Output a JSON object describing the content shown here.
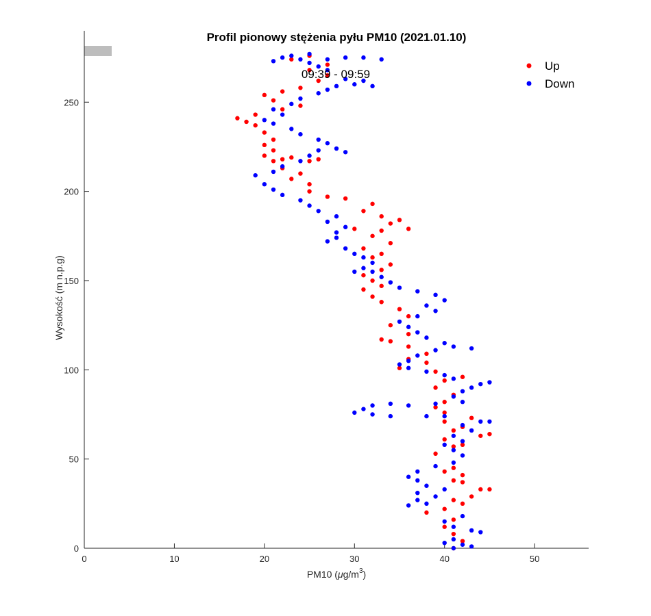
{
  "chart_data": {
    "type": "scatter",
    "title": "Profil pionowy stężenia pyłu PM10 (2021.01.10)",
    "xlabel": "PM10 (μg/m³)",
    "xlabel_main": "PM10 (",
    "xlabel_mu": "μ",
    "xlabel_unit": "g/m",
    "xlabel_exp": "3",
    "xlabel_close": ")",
    "ylabel": "Wysokość (m n.p.g)",
    "xlim": [
      0,
      56
    ],
    "ylim": [
      0,
      290
    ],
    "xticks": [
      0,
      10,
      20,
      30,
      40,
      50
    ],
    "yticks": [
      0,
      50,
      100,
      150,
      200,
      250
    ],
    "annotation": "09:39 - 09:59",
    "legend_position": "top-right",
    "series": [
      {
        "name": "Up",
        "color": "#ff0000",
        "points": [
          [
            41,
            0
          ],
          [
            42,
            4
          ],
          [
            41,
            8
          ],
          [
            40,
            12
          ],
          [
            41,
            16
          ],
          [
            38,
            20
          ],
          [
            40,
            22
          ],
          [
            42,
            25
          ],
          [
            41,
            27
          ],
          [
            43,
            29
          ],
          [
            44,
            33
          ],
          [
            45,
            33
          ],
          [
            42,
            37
          ],
          [
            41,
            38
          ],
          [
            42,
            41
          ],
          [
            40,
            43
          ],
          [
            41,
            45
          ],
          [
            39,
            53
          ],
          [
            41,
            57
          ],
          [
            42,
            58
          ],
          [
            40,
            61
          ],
          [
            44,
            63
          ],
          [
            45,
            64
          ],
          [
            41,
            66
          ],
          [
            42,
            68
          ],
          [
            40,
            71
          ],
          [
            43,
            73
          ],
          [
            40,
            76
          ],
          [
            39,
            79
          ],
          [
            40,
            82
          ],
          [
            41,
            86
          ],
          [
            39,
            90
          ],
          [
            40,
            94
          ],
          [
            42,
            96
          ],
          [
            39,
            99
          ],
          [
            38,
            104
          ],
          [
            35,
            101
          ],
          [
            36,
            106
          ],
          [
            38,
            109
          ],
          [
            36,
            113
          ],
          [
            34,
            116
          ],
          [
            33,
            117
          ],
          [
            36,
            120
          ],
          [
            34,
            125
          ],
          [
            36,
            130
          ],
          [
            35,
            134
          ],
          [
            33,
            138
          ],
          [
            32,
            141
          ],
          [
            31,
            145
          ],
          [
            33,
            147
          ],
          [
            32,
            150
          ],
          [
            31,
            153
          ],
          [
            33,
            156
          ],
          [
            34,
            159
          ],
          [
            32,
            163
          ],
          [
            33,
            165
          ],
          [
            31,
            168
          ],
          [
            34,
            171
          ],
          [
            32,
            175
          ],
          [
            33,
            178
          ],
          [
            30,
            179
          ],
          [
            36,
            179
          ],
          [
            34,
            182
          ],
          [
            35,
            184
          ],
          [
            33,
            186
          ],
          [
            31,
            189
          ],
          [
            32,
            193
          ],
          [
            29,
            196
          ],
          [
            27,
            197
          ],
          [
            25,
            200
          ],
          [
            25,
            204
          ],
          [
            23,
            207
          ],
          [
            24,
            210
          ],
          [
            22,
            213
          ],
          [
            21,
            217
          ],
          [
            22,
            218
          ],
          [
            23,
            219
          ],
          [
            25,
            217
          ],
          [
            26,
            218
          ],
          [
            20,
            220
          ],
          [
            21,
            223
          ],
          [
            20,
            226
          ],
          [
            21,
            229
          ],
          [
            20,
            233
          ],
          [
            19,
            237
          ],
          [
            18,
            239
          ],
          [
            17,
            241
          ],
          [
            19,
            243
          ],
          [
            22,
            246
          ],
          [
            24,
            248
          ],
          [
            21,
            251
          ],
          [
            20,
            254
          ],
          [
            22,
            256
          ],
          [
            24,
            258
          ],
          [
            26,
            262
          ],
          [
            27,
            265
          ],
          [
            25,
            268
          ],
          [
            27,
            271
          ],
          [
            23,
            274
          ],
          [
            25,
            276
          ]
        ]
      },
      {
        "name": "Down",
        "color": "#0000ff",
        "points": [
          [
            41,
            0
          ],
          [
            43,
            1
          ],
          [
            42,
            2
          ],
          [
            40,
            3
          ],
          [
            41,
            5
          ],
          [
            44,
            9
          ],
          [
            43,
            10
          ],
          [
            41,
            12
          ],
          [
            40,
            15
          ],
          [
            42,
            18
          ],
          [
            36,
            24
          ],
          [
            38,
            25
          ],
          [
            37,
            27
          ],
          [
            39,
            29
          ],
          [
            37,
            31
          ],
          [
            40,
            33
          ],
          [
            38,
            35
          ],
          [
            37,
            38
          ],
          [
            36,
            40
          ],
          [
            37,
            43
          ],
          [
            39,
            46
          ],
          [
            41,
            48
          ],
          [
            42,
            52
          ],
          [
            41,
            55
          ],
          [
            40,
            58
          ],
          [
            42,
            60
          ],
          [
            41,
            63
          ],
          [
            43,
            66
          ],
          [
            42,
            69
          ],
          [
            44,
            71
          ],
          [
            45,
            71
          ],
          [
            40,
            74
          ],
          [
            38,
            74
          ],
          [
            34,
            74
          ],
          [
            32,
            75
          ],
          [
            30,
            76
          ],
          [
            31,
            78
          ],
          [
            32,
            80
          ],
          [
            34,
            81
          ],
          [
            36,
            80
          ],
          [
            39,
            81
          ],
          [
            42,
            82
          ],
          [
            41,
            85
          ],
          [
            42,
            88
          ],
          [
            43,
            90
          ],
          [
            44,
            92
          ],
          [
            45,
            93
          ],
          [
            41,
            95
          ],
          [
            40,
            97
          ],
          [
            38,
            99
          ],
          [
            36,
            101
          ],
          [
            35,
            103
          ],
          [
            36,
            105
          ],
          [
            37,
            108
          ],
          [
            39,
            111
          ],
          [
            41,
            113
          ],
          [
            43,
            112
          ],
          [
            40,
            115
          ],
          [
            38,
            118
          ],
          [
            37,
            121
          ],
          [
            36,
            124
          ],
          [
            35,
            127
          ],
          [
            37,
            130
          ],
          [
            39,
            133
          ],
          [
            38,
            136
          ],
          [
            40,
            139
          ],
          [
            39,
            142
          ],
          [
            37,
            144
          ],
          [
            35,
            146
          ],
          [
            34,
            149
          ],
          [
            33,
            152
          ],
          [
            32,
            155
          ],
          [
            30,
            155
          ],
          [
            31,
            157
          ],
          [
            32,
            160
          ],
          [
            31,
            163
          ],
          [
            30,
            165
          ],
          [
            29,
            168
          ],
          [
            27,
            172
          ],
          [
            28,
            174
          ],
          [
            28,
            177
          ],
          [
            29,
            180
          ],
          [
            27,
            183
          ],
          [
            28,
            186
          ],
          [
            26,
            189
          ],
          [
            25,
            192
          ],
          [
            24,
            195
          ],
          [
            22,
            198
          ],
          [
            21,
            201
          ],
          [
            20,
            204
          ],
          [
            19,
            209
          ],
          [
            21,
            211
          ],
          [
            22,
            214
          ],
          [
            24,
            217
          ],
          [
            25,
            220
          ],
          [
            26,
            223
          ],
          [
            28,
            224
          ],
          [
            29,
            222
          ],
          [
            27,
            227
          ],
          [
            26,
            229
          ],
          [
            24,
            232
          ],
          [
            23,
            235
          ],
          [
            21,
            238
          ],
          [
            20,
            240
          ],
          [
            22,
            243
          ],
          [
            21,
            246
          ],
          [
            23,
            249
          ],
          [
            24,
            252
          ],
          [
            26,
            255
          ],
          [
            27,
            257
          ],
          [
            28,
            259
          ],
          [
            30,
            260
          ],
          [
            31,
            262
          ],
          [
            32,
            259
          ],
          [
            29,
            263
          ],
          [
            27,
            268
          ],
          [
            26,
            270
          ],
          [
            25,
            272
          ],
          [
            24,
            274
          ],
          [
            22,
            275
          ],
          [
            21,
            273
          ],
          [
            23,
            276
          ],
          [
            25,
            277
          ],
          [
            27,
            274
          ],
          [
            29,
            275
          ],
          [
            31,
            275
          ],
          [
            33,
            274
          ]
        ]
      }
    ]
  }
}
